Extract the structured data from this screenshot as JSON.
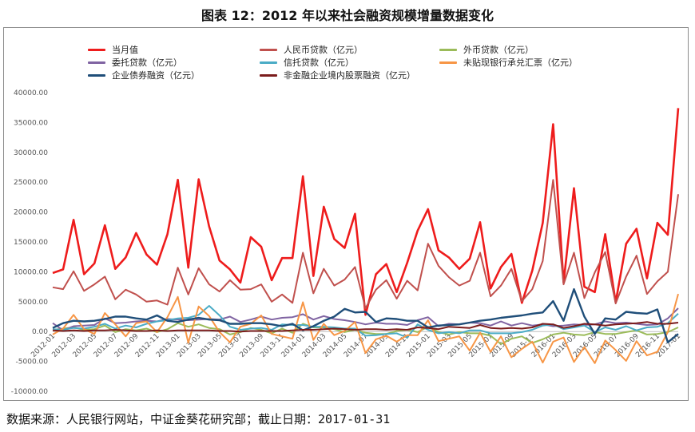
{
  "title": "图表 12：2012 年以来社会融资规模增量数据变化",
  "source": "数据来源：人民银行网站，中证金葵花研究部；截止日期：2017-01-31",
  "chart_data": {
    "type": "line",
    "xlabel": "",
    "ylabel": "",
    "ylim": [
      -10000,
      40000
    ],
    "yticks": [
      "40000.00",
      "35000.00",
      "30000.00",
      "25000.00",
      "20000.00",
      "15000.00",
      "10000.00",
      "5000.00",
      "0.00",
      "-5000.00",
      "-10000.00"
    ],
    "ytick_values": [
      40000,
      35000,
      30000,
      25000,
      20000,
      15000,
      10000,
      5000,
      0,
      -5000,
      -10000
    ],
    "grid": false,
    "legend_position": "top",
    "xtick_labels": [
      "2012-01",
      "2012-03",
      "2012-05",
      "2012-07",
      "2012-09",
      "2012-11",
      "2013-01",
      "2013-03",
      "2013-05",
      "2013-07",
      "2013-09",
      "2013-11",
      "2014-01",
      "2014-03",
      "2014-05",
      "2014-07",
      "2014-09",
      "2014-11",
      "2015-01",
      "2015-03",
      "2015-05",
      "2015-07",
      "2015-09",
      "2015-11",
      "2016-01",
      "2016-03",
      "2016-05",
      "2016-07",
      "2016-09",
      "2016-11",
      "2017-01"
    ],
    "x": [
      "2012-01",
      "2012-02",
      "2012-03",
      "2012-04",
      "2012-05",
      "2012-06",
      "2012-07",
      "2012-08",
      "2012-09",
      "2012-10",
      "2012-11",
      "2012-12",
      "2013-01",
      "2013-02",
      "2013-03",
      "2013-04",
      "2013-05",
      "2013-06",
      "2013-07",
      "2013-08",
      "2013-09",
      "2013-10",
      "2013-11",
      "2013-12",
      "2014-01",
      "2014-02",
      "2014-03",
      "2014-04",
      "2014-05",
      "2014-06",
      "2014-07",
      "2014-08",
      "2014-09",
      "2014-10",
      "2014-11",
      "2014-12",
      "2015-01",
      "2015-02",
      "2015-03",
      "2015-04",
      "2015-05",
      "2015-06",
      "2015-07",
      "2015-08",
      "2015-09",
      "2015-10",
      "2015-11",
      "2015-12",
      "2016-01",
      "2016-02",
      "2016-03",
      "2016-04",
      "2016-05",
      "2016-06",
      "2016-07",
      "2016-08",
      "2016-09",
      "2016-10",
      "2016-11",
      "2016-12",
      "2017-01"
    ],
    "series": [
      {
        "name": "当月值",
        "color": "#ee1c1c",
        "width": 2.6,
        "values": [
          9800,
          10400,
          18700,
          9600,
          11400,
          17800,
          10500,
          12400,
          16500,
          12900,
          11200,
          16300,
          25400,
          10700,
          25500,
          17600,
          11900,
          10400,
          8200,
          15800,
          14200,
          8600,
          12300,
          12300,
          26000,
          9300,
          20900,
          15500,
          14000,
          19700,
          2800,
          9600,
          11300,
          6600,
          11500,
          16900,
          20500,
          13600,
          12400,
          10500,
          12200,
          18300,
          7200,
          10800,
          13000,
          4800,
          10200,
          18200,
          34700,
          8200,
          24000,
          7500,
          6600,
          16300,
          4900,
          14700,
          17200,
          8900,
          18200,
          16200,
          37400
        ]
      },
      {
        "name": "人民币贷款（亿元）",
        "color": "#c0504d",
        "width": 2.0,
        "values": [
          7400,
          7100,
          10100,
          6800,
          7900,
          9200,
          5400,
          7000,
          6200,
          5000,
          5200,
          4500,
          10700,
          6200,
          10600,
          7900,
          6700,
          8600,
          7000,
          7100,
          7900,
          5000,
          6200,
          4800,
          13200,
          6400,
          10500,
          7700,
          8700,
          10800,
          3900,
          7000,
          8600,
          5500,
          8500,
          6900,
          14700,
          11000,
          9100,
          7700,
          8500,
          13200,
          5900,
          7700,
          10500,
          5100,
          7100,
          11800,
          25400,
          7900,
          13200,
          5600,
          9900,
          13300,
          4700,
          9200,
          12700,
          6300,
          8400,
          10000,
          23000
        ]
      },
      {
        "name": "外币贷款（亿元）",
        "color": "#9bbb59",
        "width": 2.0,
        "values": [
          300,
          500,
          700,
          300,
          400,
          1000,
          -100,
          400,
          200,
          500,
          -100,
          400,
          1400,
          800,
          1200,
          600,
          400,
          -500,
          -100,
          600,
          300,
          -300,
          500,
          -200,
          1300,
          700,
          700,
          400,
          -100,
          300,
          -200,
          -400,
          -400,
          100,
          300,
          -100,
          800,
          -100,
          -500,
          -100,
          -300,
          -300,
          -700,
          -2100,
          -1200,
          -800,
          -1900,
          -1300,
          -500,
          -200,
          -500,
          -600,
          -100,
          -400,
          -400,
          -100,
          200,
          -500,
          -400,
          -100,
          700
        ]
      },
      {
        "name": "委托贷款（亿元）",
        "color": "#8064a2",
        "width": 2.0,
        "values": [
          1400,
          200,
          900,
          1000,
          1100,
          2200,
          1400,
          1500,
          1700,
          1800,
          1700,
          2100,
          2000,
          1900,
          2000,
          2100,
          2000,
          2500,
          1600,
          2000,
          2500,
          2000,
          2300,
          2400,
          2900,
          2000,
          2600,
          2100,
          1900,
          1600,
          1200,
          1500,
          1300,
          1300,
          1100,
          1900,
          2400,
          900,
          1300,
          1200,
          1500,
          1400,
          1000,
          1700,
          1000,
          1400,
          1000,
          1200,
          900,
          1000,
          1200,
          1100,
          1200,
          1700,
          1400,
          1500,
          1300,
          1100,
          1200,
          2200,
          3900
        ]
      },
      {
        "name": "信托贷款（亿元）",
        "color": "#4bacc6",
        "width": 2.0,
        "values": [
          400,
          300,
          600,
          500,
          800,
          1300,
          500,
          1000,
          700,
          1300,
          1700,
          1900,
          2200,
          2300,
          2800,
          4300,
          2700,
          800,
          300,
          500,
          600,
          300,
          1200,
          1100,
          1100,
          800,
          800,
          700,
          500,
          500,
          -700,
          -600,
          -400,
          -300,
          -1000,
          1200,
          300,
          -300,
          -100,
          -300,
          200,
          200,
          -300,
          -300,
          -300,
          -100,
          300,
          1000,
          1200,
          400,
          700,
          1000,
          -100,
          700,
          300,
          900,
          200,
          700,
          800,
          1400,
          3000
        ]
      },
      {
        "name": "未贴现银行承兑汇票（亿元）",
        "color": "#f79646",
        "width": 2.0,
        "values": [
          -500,
          500,
          2800,
          400,
          -400,
          3100,
          1200,
          -800,
          1400,
          1700,
          -100,
          2400,
          5800,
          -1900,
          4200,
          2600,
          -100,
          -1800,
          800,
          1300,
          2700,
          -400,
          -800,
          -1200,
          4900,
          -1400,
          1300,
          -600,
          100,
          1600,
          -3600,
          -1300,
          -700,
          -1700,
          -600,
          -600,
          1900,
          -1600,
          -1200,
          -800,
          -3200,
          -200,
          -3400,
          -800,
          -4300,
          -2900,
          -1700,
          -5200,
          -1700,
          -1000,
          -5100,
          -2600,
          -5300,
          -1500,
          -3100,
          -4900,
          -1600,
          -4000,
          -3400,
          -100,
          6300
        ]
      },
      {
        "name": "企业债券融资（亿元）",
        "color": "#1f4e79",
        "width": 2.4,
        "values": [
          600,
          1400,
          1800,
          1700,
          1800,
          2100,
          2500,
          2500,
          2200,
          2000,
          2700,
          1800,
          1600,
          2000,
          2300,
          2000,
          1900,
          1300,
          1300,
          1400,
          1400,
          1200,
          900,
          1300,
          200,
          900,
          1800,
          2500,
          3800,
          3200,
          3300,
          1600,
          2200,
          2100,
          1800,
          1800,
          700,
          1000,
          1100,
          1200,
          1500,
          1800,
          2000,
          2300,
          2500,
          2700,
          3000,
          3200,
          5100,
          1800,
          7100,
          2500,
          -400,
          2200,
          2000,
          3300,
          3100,
          3000,
          3700,
          -1800,
          -400
        ]
      },
      {
        "name": "非金融企业境内股票融资（亿元）",
        "color": "#7b1c1c",
        "width": 2.0,
        "values": [
          200,
          100,
          200,
          100,
          200,
          200,
          300,
          200,
          100,
          100,
          200,
          100,
          200,
          200,
          200,
          200,
          100,
          100,
          0,
          100,
          100,
          100,
          100,
          200,
          300,
          300,
          400,
          500,
          400,
          300,
          400,
          400,
          300,
          400,
          300,
          700,
          600,
          400,
          800,
          700,
          600,
          1100,
          600,
          500,
          600,
          500,
          700,
          1300,
          1200,
          600,
          900,
          1300,
          1200,
          1000,
          1200,
          1300,
          1400,
          1600,
          1300,
          1300,
          1500
        ]
      }
    ]
  }
}
